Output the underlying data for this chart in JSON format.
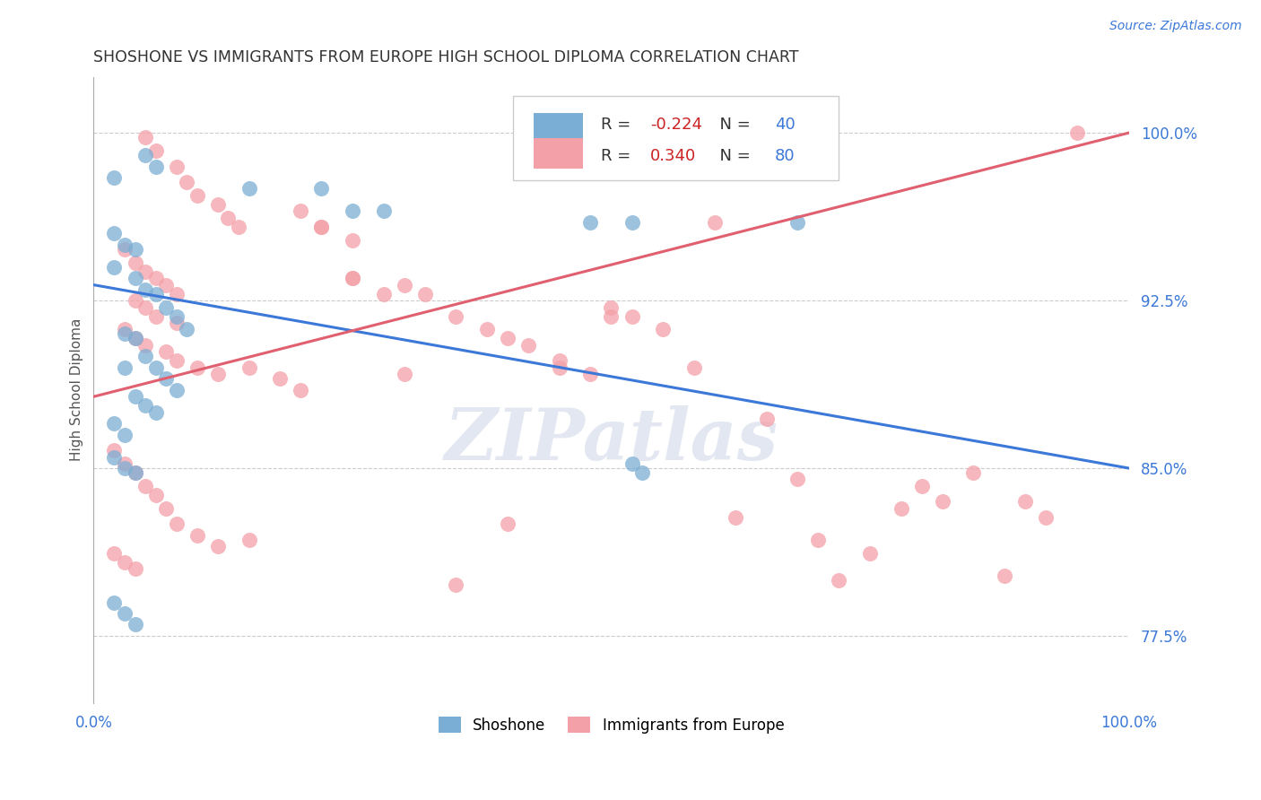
{
  "title": "SHOSHONE VS IMMIGRANTS FROM EUROPE HIGH SCHOOL DIPLOMA CORRELATION CHART",
  "source_text": "Source: ZipAtlas.com",
  "ylabel": "High School Diploma",
  "xlim": [
    0.0,
    1.0
  ],
  "ylim": [
    0.745,
    1.025
  ],
  "yticks": [
    0.775,
    0.85,
    0.925,
    1.0
  ],
  "ytick_labels": [
    "77.5%",
    "85.0%",
    "92.5%",
    "100.0%"
  ],
  "xtick_labels": [
    "0.0%",
    "100.0%"
  ],
  "xticks": [
    0.0,
    1.0
  ],
  "shoshone_color": "#7baed4",
  "immigrants_color": "#f4a0a8",
  "shoshone_line_color": "#3c78d8",
  "immigrants_line_color": "#e06070",
  "watermark_color": "#d0d8e8",
  "watermark_text": "ZIPatlas",
  "legend_R_shoshone": "-0.224",
  "legend_N_shoshone": "40",
  "legend_R_immigrants": "0.340",
  "legend_N_immigrants": "80",
  "blue_trend_start_y": 0.932,
  "blue_trend_end_y": 0.85,
  "pink_trend_start_y": 0.882,
  "pink_trend_end_y": 1.0,
  "shoshone_x": [
    0.02,
    0.05,
    0.06,
    0.15,
    0.22,
    0.25,
    0.28,
    0.48,
    0.52,
    0.68,
    0.02,
    0.03,
    0.04,
    0.02,
    0.04,
    0.05,
    0.06,
    0.07,
    0.08,
    0.09,
    0.03,
    0.04,
    0.05,
    0.03,
    0.06,
    0.07,
    0.08,
    0.04,
    0.05,
    0.06,
    0.02,
    0.03,
    0.02,
    0.03,
    0.04,
    0.52,
    0.53,
    0.02,
    0.03,
    0.04
  ],
  "shoshone_y": [
    0.98,
    0.99,
    0.985,
    0.975,
    0.975,
    0.965,
    0.965,
    0.96,
    0.96,
    0.96,
    0.955,
    0.95,
    0.948,
    0.94,
    0.935,
    0.93,
    0.928,
    0.922,
    0.918,
    0.912,
    0.91,
    0.908,
    0.9,
    0.895,
    0.895,
    0.89,
    0.885,
    0.882,
    0.878,
    0.875,
    0.87,
    0.865,
    0.855,
    0.85,
    0.848,
    0.852,
    0.848,
    0.79,
    0.785,
    0.78
  ],
  "immigrants_x": [
    0.05,
    0.06,
    0.08,
    0.09,
    0.1,
    0.12,
    0.13,
    0.14,
    0.22,
    0.25,
    0.03,
    0.04,
    0.05,
    0.06,
    0.07,
    0.08,
    0.04,
    0.05,
    0.06,
    0.08,
    0.03,
    0.04,
    0.05,
    0.07,
    0.08,
    0.1,
    0.12,
    0.15,
    0.18,
    0.2,
    0.22,
    0.25,
    0.28,
    0.3,
    0.32,
    0.35,
    0.38,
    0.4,
    0.42,
    0.45,
    0.48,
    0.5,
    0.52,
    0.55,
    0.58,
    0.6,
    0.62,
    0.65,
    0.68,
    0.7,
    0.72,
    0.75,
    0.78,
    0.8,
    0.82,
    0.85,
    0.88,
    0.9,
    0.92,
    0.95,
    0.02,
    0.03,
    0.04,
    0.05,
    0.06,
    0.07,
    0.08,
    0.1,
    0.12,
    0.15,
    0.02,
    0.03,
    0.04,
    0.2,
    0.25,
    0.3,
    0.35,
    0.4,
    0.45,
    0.5
  ],
  "immigrants_y": [
    0.998,
    0.992,
    0.985,
    0.978,
    0.972,
    0.968,
    0.962,
    0.958,
    0.958,
    0.952,
    0.948,
    0.942,
    0.938,
    0.935,
    0.932,
    0.928,
    0.925,
    0.922,
    0.918,
    0.915,
    0.912,
    0.908,
    0.905,
    0.902,
    0.898,
    0.895,
    0.892,
    0.895,
    0.89,
    0.885,
    0.958,
    0.935,
    0.928,
    0.932,
    0.928,
    0.918,
    0.912,
    0.908,
    0.905,
    0.898,
    0.892,
    0.922,
    0.918,
    0.912,
    0.895,
    0.96,
    0.828,
    0.872,
    0.845,
    0.818,
    0.8,
    0.812,
    0.832,
    0.842,
    0.835,
    0.848,
    0.802,
    0.835,
    0.828,
    1.0,
    0.858,
    0.852,
    0.848,
    0.842,
    0.838,
    0.832,
    0.825,
    0.82,
    0.815,
    0.818,
    0.812,
    0.808,
    0.805,
    0.965,
    0.935,
    0.892,
    0.798,
    0.825,
    0.895,
    0.918
  ]
}
